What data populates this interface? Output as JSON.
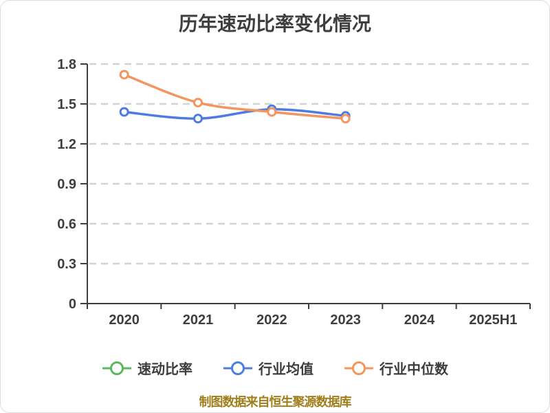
{
  "title": "历年速动比率变化情况",
  "footer": {
    "text": "制图数据来自恒生聚源数据库",
    "color": "#A07E1A"
  },
  "colors": {
    "text": "#3E3E3E",
    "axis": "#3E3E3E",
    "grid": "#D3D3D3",
    "background": "#FFFFFF"
  },
  "chart_data": {
    "type": "line",
    "title": "历年速动比率变化情况",
    "categories": [
      "2020",
      "2021",
      "2022",
      "2023",
      "2024",
      "2025H1"
    ],
    "series": [
      {
        "name": "速动比率",
        "color": "#5CB85C",
        "values": [
          null,
          null,
          null,
          null,
          null,
          null
        ]
      },
      {
        "name": "行业均值",
        "color": "#4D7BDF",
        "values": [
          1.44,
          1.39,
          1.46,
          1.41,
          null,
          null
        ]
      },
      {
        "name": "行业中位数",
        "color": "#F4945E",
        "values": [
          1.72,
          1.51,
          1.44,
          1.39,
          null,
          null
        ]
      }
    ],
    "ylim": [
      0,
      1.8
    ],
    "yticks": [
      {
        "v": 0,
        "label": "0"
      },
      {
        "v": 0.3,
        "label": "0.3"
      },
      {
        "v": 0.6,
        "label": "0.6"
      },
      {
        "v": 0.9,
        "label": "0.9"
      },
      {
        "v": 1.2,
        "label": "1.2"
      },
      {
        "v": 1.5,
        "label": "1.5"
      },
      {
        "v": 1.8,
        "label": "1.8"
      }
    ],
    "grid": "horizontal-dashed",
    "legend_position": "bottom",
    "smooth": true,
    "marker": "circle-white-fill"
  }
}
